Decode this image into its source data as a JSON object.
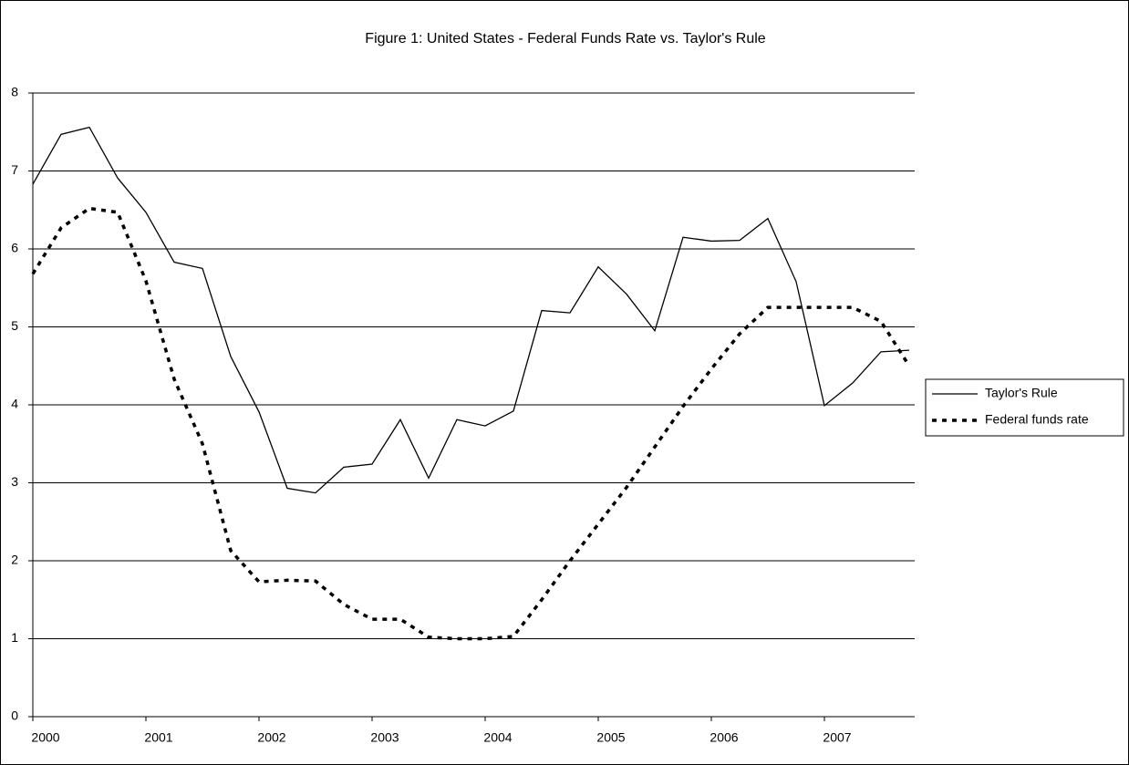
{
  "chart_data": {
    "type": "line",
    "title": "Figure 1: United States - Federal Funds Rate vs. Taylor's Rule",
    "categories": [
      "2000",
      null,
      null,
      null,
      "2001",
      null,
      null,
      null,
      "2002",
      null,
      null,
      null,
      "2003",
      null,
      null,
      null,
      "2004",
      null,
      null,
      null,
      "2005",
      null,
      null,
      null,
      "2006",
      null,
      null,
      null,
      "2007",
      null,
      null,
      null
    ],
    "series": [
      {
        "name": "Taylor's Rule",
        "color": "#000000",
        "line_style": "solid",
        "values": [
          6.83,
          7.47,
          7.56,
          6.91,
          6.47,
          5.83,
          5.75,
          4.62,
          3.91,
          2.93,
          2.87,
          3.2,
          3.24,
          3.81,
          3.06,
          3.81,
          3.73,
          3.92,
          5.21,
          5.18,
          5.77,
          5.42,
          4.95,
          6.15,
          6.1,
          6.11,
          6.39,
          5.58,
          3.99,
          4.28,
          4.68,
          4.7
        ]
      },
      {
        "name": "Federal funds rate",
        "color": "#000000",
        "line_style": "dashed",
        "values": [
          5.68,
          6.27,
          6.52,
          6.47,
          5.59,
          4.33,
          3.5,
          2.13,
          1.73,
          1.75,
          1.74,
          1.44,
          1.25,
          1.25,
          1.02,
          1.0,
          1.0,
          1.03,
          1.5,
          2.0,
          2.47,
          2.94,
          3.46,
          3.98,
          4.46,
          4.91,
          5.25,
          5.25,
          5.25,
          5.25,
          5.07,
          4.5
        ]
      }
    ],
    "ylim": [
      0,
      8
    ],
    "yticks": [
      0,
      1,
      2,
      3,
      4,
      5,
      6,
      7,
      8
    ],
    "grid": true,
    "legend": "right"
  }
}
